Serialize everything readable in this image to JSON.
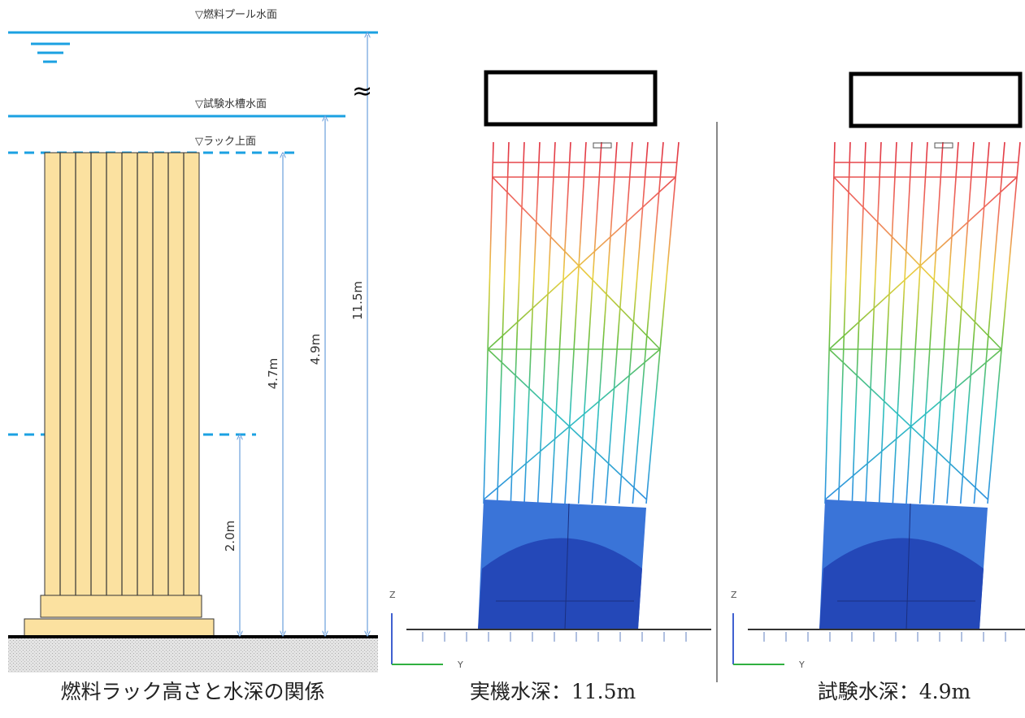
{
  "left": {
    "pool_surface": "▽燃料プール水面",
    "tank_surface": "▽試験水槽水面",
    "rack_top": "▽ラック上面",
    "break_mark": "≈",
    "dimensions": [
      "2.0m",
      "4.7m",
      "4.9m",
      "11.5m"
    ],
    "caption": "燃料ラック高さと水深の関係"
  },
  "panels": [
    {
      "axes": [
        "Z",
        "Y"
      ],
      "caption": "実機水深：11.5m"
    },
    {
      "axes": [
        "Z",
        "Y"
      ],
      "caption": "試験水深：4.9m"
    }
  ]
}
